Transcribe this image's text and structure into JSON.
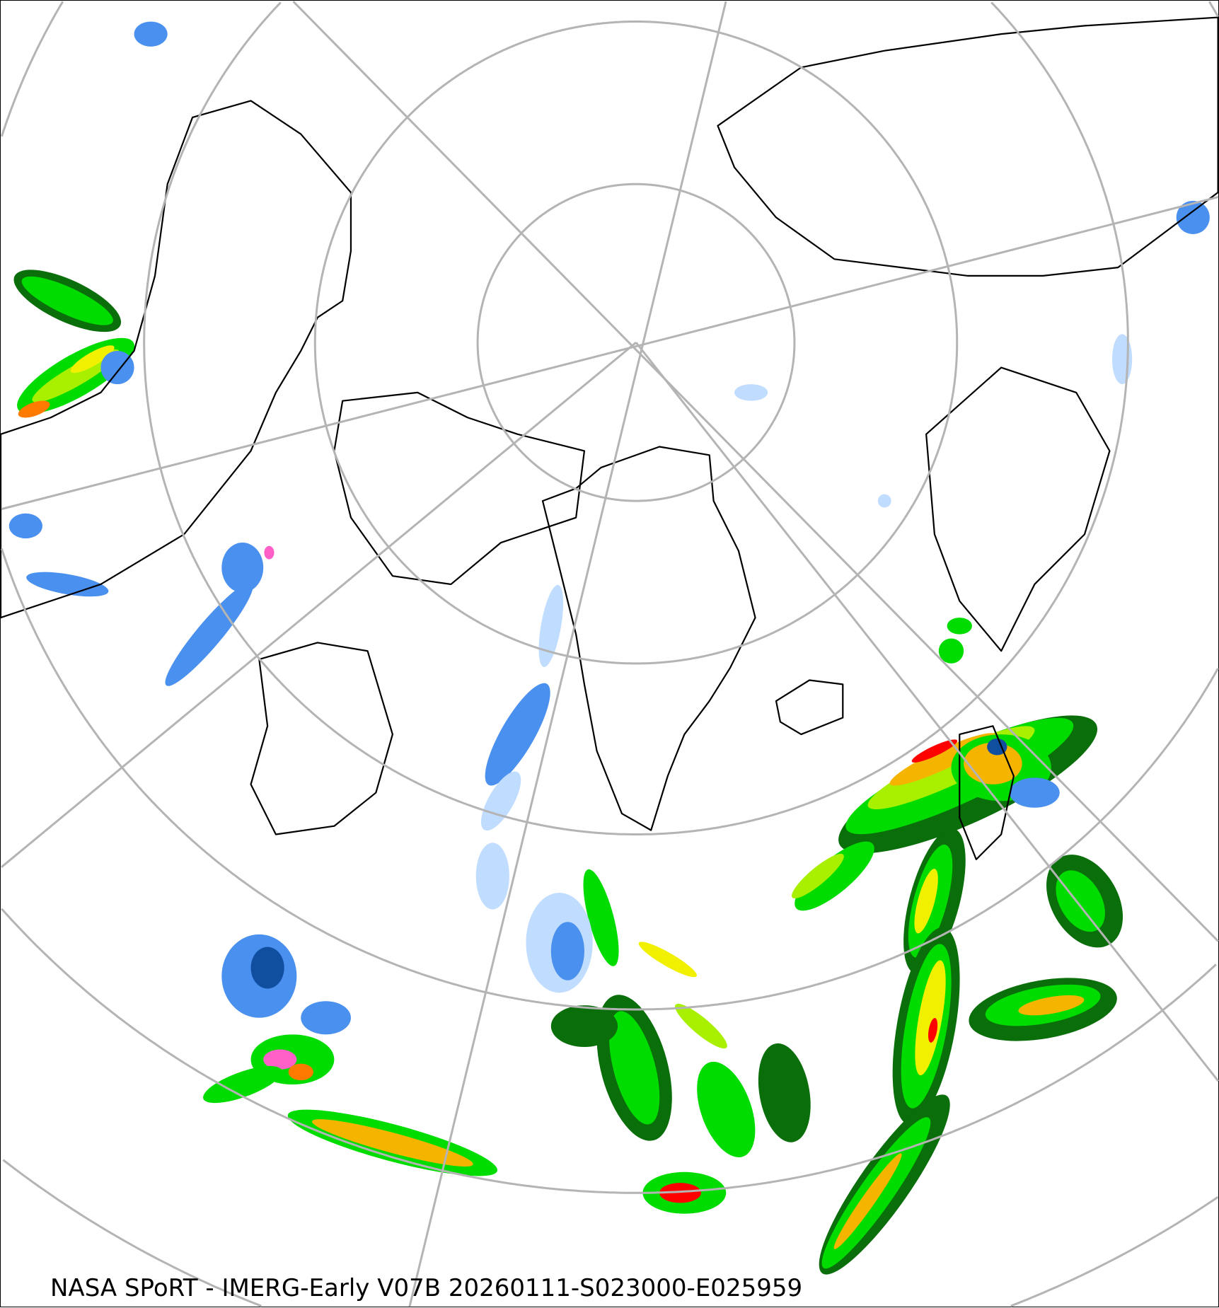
{
  "caption": "NASA SPoRT - IMERG-Early V07B 20260111-S023000-E025959",
  "map": {
    "projection": "north-polar-stereographic",
    "graticule_color": "#b4b4b4",
    "coastline_color": "#000000",
    "precip_palette": {
      "rain_light": "#0a6e0a",
      "rain_low": "#00dc00",
      "rain_moderate_low": "#a8f000",
      "rain_moderate": "#f0f000",
      "rain_moderate_high": "#f5b400",
      "rain_heavy": "#ff7a00",
      "rain_very_heavy": "#ff0000",
      "mixed": "#ff60c8",
      "snow_light": "#c0dcff",
      "snow_moderate": "#4a90ee",
      "snow_heavy": "#104ea0"
    }
  }
}
